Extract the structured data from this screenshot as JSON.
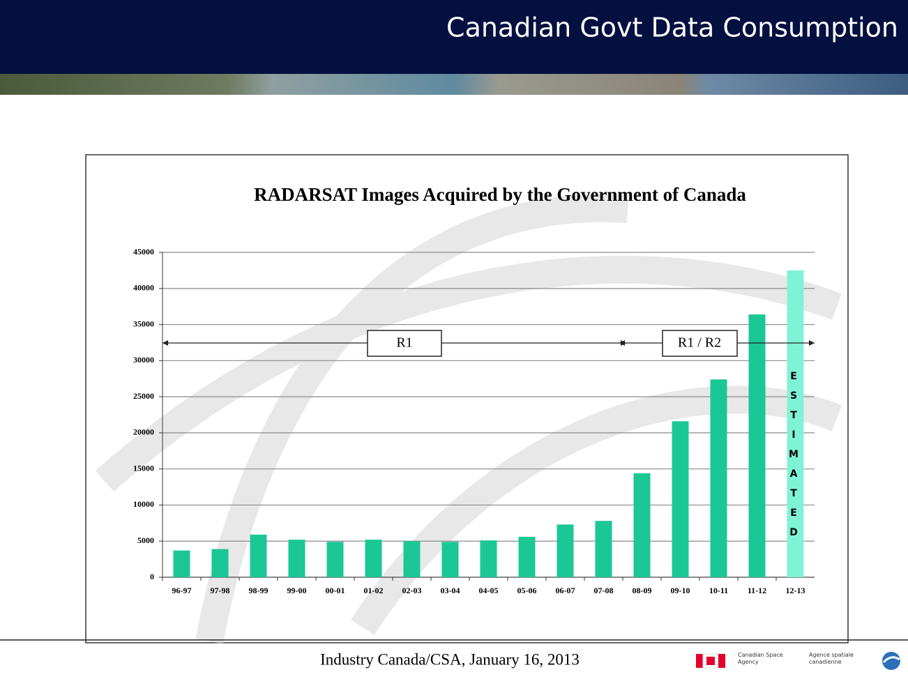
{
  "header": {
    "title": "Canadian Govt Data Consumption"
  },
  "chart_data": {
    "type": "bar",
    "title": "RADARSAT Images Acquired by the Government of Canada",
    "categories": [
      "96-97",
      "97-98",
      "98-99",
      "99-00",
      "00-01",
      "01-02",
      "02-03",
      "03-04",
      "04-05",
      "05-06",
      "06-07",
      "07-08",
      "08-09",
      "09-10",
      "10-11",
      "11-12",
      "12-13"
    ],
    "values": [
      3700,
      3900,
      5900,
      5200,
      4900,
      5200,
      5000,
      4900,
      5100,
      5600,
      7300,
      7800,
      14400,
      21600,
      27400,
      36400,
      42500
    ],
    "colors": [
      "#1ac795",
      "#1ac795",
      "#1ac795",
      "#1ac795",
      "#1ac795",
      "#1ac795",
      "#1ac795",
      "#1ac795",
      "#1ac795",
      "#1ac795",
      "#1ac795",
      "#1ac795",
      "#1ac795",
      "#1ac795",
      "#1ac795",
      "#1ac795",
      "#80f3d6"
    ],
    "ylim": [
      0,
      45000
    ],
    "yticks": [
      0,
      5000,
      10000,
      15000,
      20000,
      25000,
      30000,
      35000,
      40000,
      45000
    ],
    "grid": true,
    "annotations": [
      "R1",
      "R1 / R2",
      "ESTIMATED"
    ]
  },
  "footer": {
    "text": "Industry Canada/CSA, January 16, 2013",
    "agency_en": "Canadian Space Agency",
    "agency_fr": "Agence spatiale canadienne"
  }
}
